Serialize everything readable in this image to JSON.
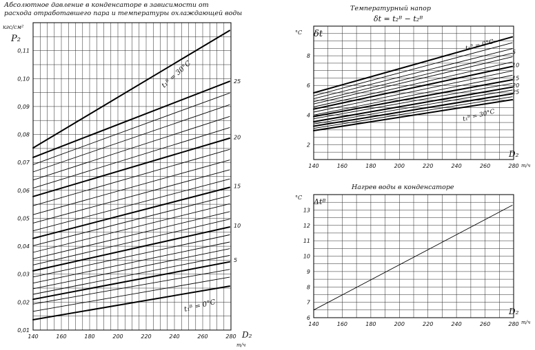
{
  "chart_data": [
    {
      "type": "line",
      "title_lines": [
        "Абсолютное давление в конденсаторе в зависимости от",
        "расхода отработавшего пара и температуры охлаждающей воды"
      ],
      "ylabel": "P₂",
      "yunit": "кгс/см²",
      "xlabel": "D₂",
      "xunit": "т/ч",
      "xlim": [
        140,
        280
      ],
      "ylim": [
        0.01,
        0.12
      ],
      "x_ticks": [
        "140",
        "160",
        "180",
        "200",
        "220",
        "240",
        "260",
        "280"
      ],
      "y_ticks": [
        "0,01",
        "0,02",
        "0,03",
        "0,04",
        "0,05",
        "0,06",
        "0,07",
        "0,08",
        "0,09",
        "0,10",
        "0,11"
      ],
      "y_tick_values": [
        0.01,
        0.02,
        0.03,
        0.04,
        0.05,
        0.06,
        0.07,
        0.08,
        0.09,
        0.1,
        0.11
      ],
      "x": [
        140,
        280
      ],
      "series": [
        {
          "t": 0,
          "values": [
            0.0137,
            0.0258
          ],
          "bold": true
        },
        {
          "t": 2,
          "values": [
            0.0167,
            0.029
          ],
          "bold": false
        },
        {
          "t": 4,
          "values": [
            0.0193,
            0.0318
          ],
          "bold": false
        },
        {
          "t": 5,
          "values": [
            0.021,
            0.0345
          ],
          "bold": true
        },
        {
          "t": 6,
          "values": [
            0.0228,
            0.0368
          ],
          "bold": false
        },
        {
          "t": 7,
          "values": [
            0.0248,
            0.0392
          ],
          "bold": false
        },
        {
          "t": 8,
          "values": [
            0.0268,
            0.0416
          ],
          "bold": false
        },
        {
          "t": 9,
          "values": [
            0.029,
            0.0442
          ],
          "bold": false
        },
        {
          "t": 10,
          "values": [
            0.0312,
            0.047
          ],
          "bold": true
        },
        {
          "t": 11,
          "values": [
            0.0333,
            0.0498
          ],
          "bold": false
        },
        {
          "t": 12,
          "values": [
            0.0355,
            0.0525
          ],
          "bold": false
        },
        {
          "t": 13,
          "values": [
            0.0378,
            0.0553
          ],
          "bold": false
        },
        {
          "t": 14,
          "values": [
            0.0402,
            0.0582
          ],
          "bold": false
        },
        {
          "t": 15,
          "values": [
            0.0428,
            0.0612
          ],
          "bold": true
        },
        {
          "t": 16,
          "values": [
            0.0455,
            0.0642
          ],
          "bold": false
        },
        {
          "t": 17,
          "values": [
            0.0483,
            0.0675
          ],
          "bold": false
        },
        {
          "t": 18,
          "values": [
            0.0513,
            0.071
          ],
          "bold": false
        },
        {
          "t": 19,
          "values": [
            0.0545,
            0.0748
          ],
          "bold": false
        },
        {
          "t": 20,
          "values": [
            0.0578,
            0.0788
          ],
          "bold": true
        },
        {
          "t": 21,
          "values": [
            0.0608,
            0.0826
          ],
          "bold": false
        },
        {
          "t": 22,
          "values": [
            0.0637,
            0.0866
          ],
          "bold": false
        },
        {
          "t": 23,
          "values": [
            0.0666,
            0.0908
          ],
          "bold": false
        },
        {
          "t": 24,
          "values": [
            0.0692,
            0.095
          ],
          "bold": false
        },
        {
          "t": 25,
          "values": [
            0.0718,
            0.0992
          ],
          "bold": true
        },
        {
          "t": 30,
          "values": [
            0.0752,
            0.1175
          ],
          "bold": true
        }
      ],
      "curve_labels": [
        {
          "text": "5",
          "t": 5
        },
        {
          "text": "10",
          "t": 10
        },
        {
          "text": "15",
          "t": 15
        },
        {
          "text": "20",
          "t": 20
        },
        {
          "text": "25",
          "t": 25
        }
      ],
      "annotations": [
        "t₁ᴮ = 30°C",
        "t₁ᴮ = 0°C"
      ]
    },
    {
      "type": "line",
      "title": "Температурный напор",
      "formula": "δt = t₂ᴮ − t₂ᴮ",
      "ylabel": "δt",
      "yunit": "°C",
      "xlabel": "D₂",
      "xunit": "т/ч",
      "xlim": [
        140,
        280
      ],
      "ylim": [
        1,
        10
      ],
      "x_ticks": [
        "140",
        "160",
        "180",
        "200",
        "220",
        "240",
        "260",
        "280"
      ],
      "y_ticks": [
        "2",
        "4",
        "6",
        "8"
      ],
      "y_tick_values": [
        2,
        4,
        6,
        8
      ],
      "x": [
        140,
        280
      ],
      "series": [
        {
          "t": 0,
          "values": [
            5.5,
            9.3
          ],
          "bold": true
        },
        {
          "t": 2,
          "values": [
            5.3,
            8.9
          ],
          "bold": false
        },
        {
          "t": 4,
          "values": [
            5.1,
            8.5
          ],
          "bold": false
        },
        {
          "t": 5,
          "values": [
            4.9,
            8.2
          ],
          "bold": false
        },
        {
          "t": 6,
          "values": [
            4.75,
            7.95
          ],
          "bold": false
        },
        {
          "t": 8,
          "values": [
            4.55,
            7.6
          ],
          "bold": false
        },
        {
          "t": 10,
          "values": [
            4.4,
            7.3
          ],
          "bold": true
        },
        {
          "t": 12,
          "values": [
            4.2,
            7.0
          ],
          "bold": false
        },
        {
          "t": 14,
          "values": [
            4.0,
            6.7
          ],
          "bold": false
        },
        {
          "t": 15,
          "values": [
            3.9,
            6.4
          ],
          "bold": true
        },
        {
          "t": 18,
          "values": [
            3.75,
            6.15
          ],
          "bold": false
        },
        {
          "t": 20,
          "values": [
            3.55,
            5.9
          ],
          "bold": true
        },
        {
          "t": 22,
          "values": [
            3.4,
            5.7
          ],
          "bold": false
        },
        {
          "t": 25,
          "values": [
            3.25,
            5.45
          ],
          "bold": true
        },
        {
          "t": 28,
          "values": [
            3.1,
            5.25
          ],
          "bold": false
        },
        {
          "t": 30,
          "values": [
            2.95,
            5.05
          ],
          "bold": true
        }
      ],
      "curve_labels": [
        {
          "text": "5",
          "t": 5
        },
        {
          "text": "10",
          "t": 10
        },
        {
          "text": "15",
          "t": 15
        },
        {
          "text": "20",
          "t": 20
        },
        {
          "text": "25",
          "t": 25
        }
      ],
      "annotations": [
        "t₁ᴮ = 0°C",
        "t₁ᴮ = 30°C"
      ]
    },
    {
      "type": "line",
      "title": "Нагрев воды в конденсаторе",
      "ylabel": "Δtᴮ",
      "yunit": "°C",
      "xlabel": "D₂",
      "xunit": "т/ч",
      "xlim": [
        140,
        280
      ],
      "ylim": [
        6,
        14
      ],
      "x_ticks": [
        "140",
        "160",
        "180",
        "200",
        "220",
        "240",
        "260",
        "280"
      ],
      "y_ticks": [
        "6",
        "7",
        "8",
        "9",
        "10",
        "11",
        "12",
        "13"
      ],
      "y_tick_values": [
        6,
        7,
        8,
        9,
        10,
        11,
        12,
        13
      ],
      "x": [
        140,
        283
      ],
      "series": [
        {
          "values": [
            6.5,
            13.5
          ],
          "bold": false
        }
      ]
    }
  ]
}
